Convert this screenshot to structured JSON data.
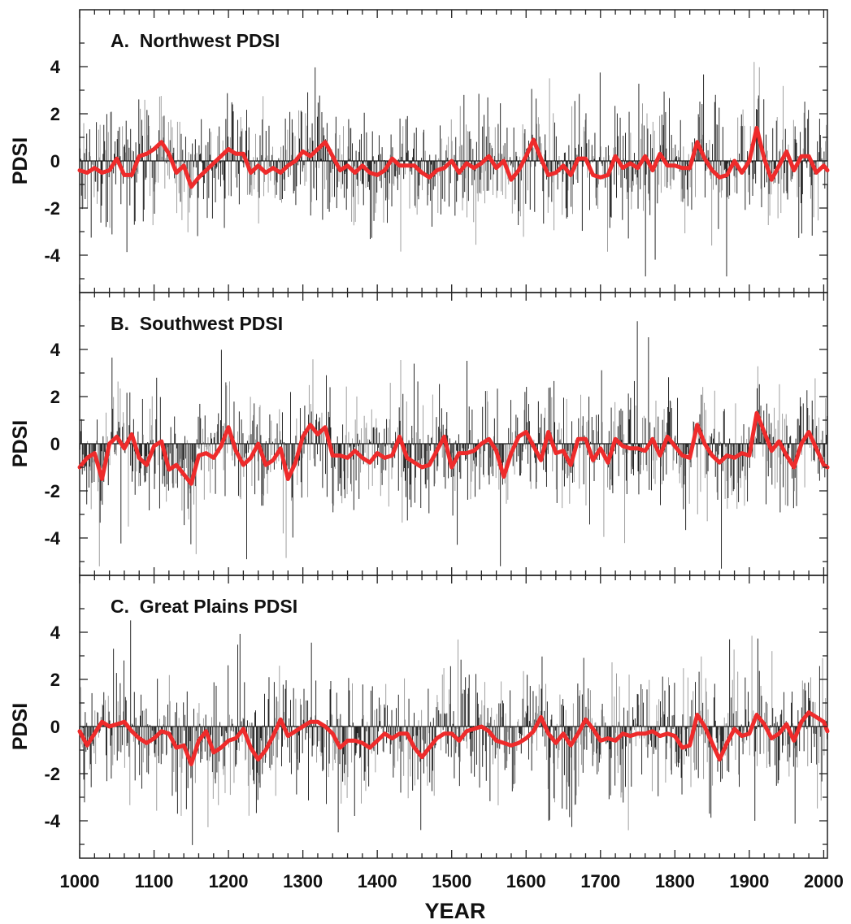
{
  "figure": {
    "x_axis_label": "YEAR",
    "x_ticks": [
      "1000",
      "1100",
      "1200",
      "1300",
      "1400",
      "1500",
      "1600",
      "1700",
      "1800",
      "1900",
      "2000"
    ],
    "y_ticks": [
      "4",
      "2",
      "0",
      "-2",
      "-4"
    ],
    "colors": {
      "smoothed_line": "#ee2b2b",
      "annual_dark": "#1e1e1e",
      "annual_light": "#9a9a9a",
      "axis": "#222222"
    }
  },
  "chart_data": [
    {
      "type": "bar",
      "title": "A.  Northwest PDSI",
      "xlabel": "",
      "ylabel": "PDSI",
      "xlim": [
        1000,
        2005
      ],
      "ylim": [
        -6,
        6
      ],
      "y_ticks": [
        4,
        2,
        0,
        -2,
        -4
      ],
      "annual_series": {
        "name": "",
        "style": "annual vertical bars from 0",
        "approx_extremes": [
          {
            "x": 1906,
            "y": 4.2
          },
          {
            "x": 1760,
            "y": -4.9
          },
          {
            "x": 1869,
            "y": -4.9
          }
        ]
      },
      "smoothed_series": {
        "name": "",
        "x": [
          1000,
          1010,
          1020,
          1030,
          1040,
          1050,
          1060,
          1070,
          1080,
          1090,
          1100,
          1110,
          1120,
          1130,
          1140,
          1150,
          1160,
          1170,
          1180,
          1190,
          1200,
          1210,
          1220,
          1230,
          1240,
          1250,
          1260,
          1270,
          1280,
          1290,
          1300,
          1310,
          1320,
          1330,
          1340,
          1350,
          1360,
          1370,
          1380,
          1390,
          1400,
          1410,
          1420,
          1430,
          1440,
          1450,
          1460,
          1470,
          1480,
          1490,
          1500,
          1510,
          1520,
          1530,
          1540,
          1550,
          1560,
          1570,
          1580,
          1590,
          1600,
          1610,
          1620,
          1630,
          1640,
          1650,
          1660,
          1670,
          1680,
          1690,
          1700,
          1710,
          1720,
          1730,
          1740,
          1750,
          1760,
          1770,
          1780,
          1790,
          1800,
          1810,
          1820,
          1830,
          1840,
          1850,
          1860,
          1870,
          1880,
          1890,
          1900,
          1910,
          1920,
          1930,
          1940,
          1950,
          1960,
          1970,
          1980,
          1990,
          2000,
          2005
        ],
        "values": [
          -0.4,
          -0.5,
          -0.3,
          -0.5,
          -0.4,
          0.1,
          -0.6,
          -0.6,
          0.2,
          0.3,
          0.5,
          0.8,
          0.3,
          -0.5,
          -0.2,
          -1.1,
          -0.7,
          -0.4,
          -0.1,
          0.2,
          0.5,
          0.3,
          0.3,
          -0.5,
          -0.2,
          -0.5,
          -0.3,
          -0.5,
          -0.2,
          0.0,
          0.4,
          0.2,
          0.5,
          0.8,
          0.2,
          -0.4,
          -0.2,
          -0.5,
          -0.2,
          -0.5,
          -0.6,
          -0.4,
          0.1,
          -0.2,
          -0.2,
          -0.2,
          -0.5,
          -0.7,
          -0.4,
          -0.3,
          0.0,
          -0.5,
          -0.1,
          -0.3,
          -0.1,
          0.2,
          -0.3,
          0.0,
          -0.8,
          -0.4,
          0.2,
          0.9,
          0.1,
          -0.6,
          -0.5,
          -0.2,
          -0.6,
          0.1,
          0.1,
          -0.6,
          -0.7,
          -0.6,
          0.2,
          -0.3,
          -0.1,
          -0.3,
          0.2,
          -0.4,
          0.3,
          -0.2,
          -0.2,
          -0.3,
          -0.3,
          0.8,
          0.1,
          -0.4,
          -0.7,
          -0.6,
          0.0,
          -0.5,
          0.0,
          1.4,
          0.1,
          -0.8,
          -0.2,
          0.4,
          -0.4,
          0.2,
          0.2,
          -0.5,
          -0.2,
          -0.4
        ]
      }
    },
    {
      "type": "bar",
      "title": "B.  Southwest PDSI",
      "xlabel": "",
      "ylabel": "PDSI",
      "xlim": [
        1000,
        2005
      ],
      "ylim": [
        -6,
        6
      ],
      "y_ticks": [
        4,
        2,
        0,
        -2,
        -4
      ],
      "annual_series": {
        "name": "",
        "style": "annual vertical bars from 0",
        "approx_extremes": [
          {
            "x": 1749,
            "y": 5.2
          },
          {
            "x": 1565,
            "y": -5.2
          },
          {
            "x": 1224,
            "y": -4.9
          }
        ]
      },
      "smoothed_series": {
        "name": "",
        "x": [
          1000,
          1010,
          1020,
          1030,
          1040,
          1050,
          1060,
          1070,
          1080,
          1090,
          1100,
          1110,
          1120,
          1130,
          1140,
          1150,
          1160,
          1170,
          1180,
          1190,
          1200,
          1210,
          1220,
          1230,
          1240,
          1250,
          1260,
          1270,
          1280,
          1290,
          1300,
          1310,
          1320,
          1330,
          1340,
          1350,
          1360,
          1370,
          1380,
          1390,
          1400,
          1410,
          1420,
          1430,
          1440,
          1450,
          1460,
          1470,
          1480,
          1490,
          1500,
          1510,
          1520,
          1530,
          1540,
          1550,
          1560,
          1570,
          1580,
          1590,
          1600,
          1610,
          1620,
          1630,
          1640,
          1650,
          1660,
          1670,
          1680,
          1690,
          1700,
          1710,
          1720,
          1730,
          1740,
          1750,
          1760,
          1770,
          1780,
          1790,
          1800,
          1810,
          1820,
          1830,
          1840,
          1850,
          1860,
          1870,
          1880,
          1890,
          1900,
          1910,
          1920,
          1930,
          1940,
          1950,
          1960,
          1970,
          1980,
          1990,
          2000,
          2005
        ],
        "values": [
          -1.0,
          -0.6,
          -0.4,
          -1.5,
          0.0,
          0.3,
          -0.2,
          0.4,
          -0.6,
          -0.9,
          -0.1,
          0.1,
          -1.1,
          -0.9,
          -1.3,
          -1.7,
          -0.5,
          -0.4,
          -0.6,
          -0.1,
          0.7,
          -0.3,
          -0.9,
          -0.6,
          0.0,
          -0.9,
          -0.7,
          -0.2,
          -1.5,
          -0.8,
          0.3,
          0.8,
          0.4,
          0.7,
          -0.5,
          -0.5,
          -0.6,
          -0.3,
          -0.6,
          -0.8,
          -0.4,
          -0.6,
          -0.5,
          0.3,
          -0.6,
          -0.8,
          -1.0,
          -0.9,
          -0.3,
          0.3,
          -1.0,
          -0.4,
          -0.4,
          -0.3,
          0.0,
          0.2,
          -0.3,
          -1.4,
          -0.4,
          0.3,
          0.5,
          -0.1,
          -0.7,
          0.5,
          -0.4,
          -0.3,
          -0.9,
          0.2,
          0.2,
          -0.7,
          -0.2,
          -0.8,
          0.2,
          -0.1,
          -0.2,
          -0.2,
          -0.3,
          0.2,
          -0.5,
          0.3,
          -0.1,
          -0.5,
          -0.6,
          0.8,
          0.0,
          -0.5,
          -0.8,
          -0.5,
          -0.6,
          -0.4,
          -0.5,
          1.3,
          0.5,
          -0.3,
          0.1,
          -0.5,
          -1.0,
          0.0,
          0.5,
          -0.2,
          -0.9,
          -1.0
        ]
      }
    },
    {
      "type": "bar",
      "title": "C.  Great Plains PDSI",
      "xlabel": "YEAR",
      "ylabel": "PDSI",
      "xlim": [
        1000,
        2005
      ],
      "ylim": [
        -6,
        6
      ],
      "y_ticks": [
        4,
        2,
        0,
        -2,
        -4
      ],
      "annual_series": {
        "name": "",
        "style": "annual vertical bars from 0",
        "approx_extremes": [
          {
            "x": 1045,
            "y": 3.3
          },
          {
            "x": 1737,
            "y": -4.4
          },
          {
            "x": 1907,
            "y": -4.0
          }
        ]
      },
      "smoothed_series": {
        "name": "",
        "x": [
          1000,
          1010,
          1020,
          1030,
          1040,
          1050,
          1060,
          1070,
          1080,
          1090,
          1100,
          1110,
          1120,
          1130,
          1140,
          1150,
          1160,
          1170,
          1180,
          1190,
          1200,
          1210,
          1220,
          1230,
          1240,
          1250,
          1260,
          1270,
          1280,
          1290,
          1300,
          1310,
          1320,
          1330,
          1340,
          1350,
          1360,
          1370,
          1380,
          1390,
          1400,
          1410,
          1420,
          1430,
          1440,
          1450,
          1460,
          1470,
          1480,
          1490,
          1500,
          1510,
          1520,
          1530,
          1540,
          1550,
          1560,
          1570,
          1580,
          1590,
          1600,
          1610,
          1620,
          1630,
          1640,
          1650,
          1660,
          1670,
          1680,
          1690,
          1700,
          1710,
          1720,
          1730,
          1740,
          1750,
          1760,
          1770,
          1780,
          1790,
          1800,
          1810,
          1820,
          1830,
          1840,
          1850,
          1860,
          1870,
          1880,
          1890,
          1900,
          1910,
          1920,
          1930,
          1940,
          1950,
          1960,
          1970,
          1980,
          1990,
          2000,
          2005
        ],
        "values": [
          -0.2,
          -0.8,
          -0.3,
          0.2,
          0.0,
          0.1,
          0.2,
          -0.2,
          -0.5,
          -0.7,
          -0.5,
          -0.2,
          -0.3,
          -0.9,
          -0.8,
          -1.6,
          -0.6,
          -0.2,
          -1.1,
          -0.9,
          -0.6,
          -0.5,
          -0.1,
          -0.9,
          -1.4,
          -1.0,
          -0.4,
          0.3,
          -0.4,
          -0.2,
          0.0,
          0.2,
          0.2,
          0.0,
          -0.3,
          -0.9,
          -0.6,
          -0.6,
          -0.7,
          -0.9,
          -0.6,
          -0.3,
          -0.5,
          -0.3,
          -0.3,
          -0.9,
          -1.3,
          -0.9,
          -0.5,
          -0.3,
          -0.3,
          -0.6,
          -0.2,
          -0.1,
          0.0,
          -0.2,
          -0.6,
          -0.7,
          -0.8,
          -0.7,
          -0.5,
          -0.2,
          0.4,
          -0.3,
          -0.7,
          -0.3,
          -0.8,
          -0.3,
          0.3,
          -0.1,
          -0.6,
          -0.5,
          -0.6,
          -0.3,
          -0.4,
          -0.3,
          -0.3,
          -0.2,
          -0.4,
          -0.3,
          -0.4,
          -0.9,
          -0.8,
          0.5,
          0.0,
          -0.7,
          -1.4,
          -0.7,
          -0.1,
          -0.4,
          -0.3,
          0.5,
          0.1,
          -0.5,
          -0.3,
          0.1,
          -0.6,
          0.2,
          0.6,
          0.4,
          0.2,
          -0.2
        ]
      }
    }
  ]
}
